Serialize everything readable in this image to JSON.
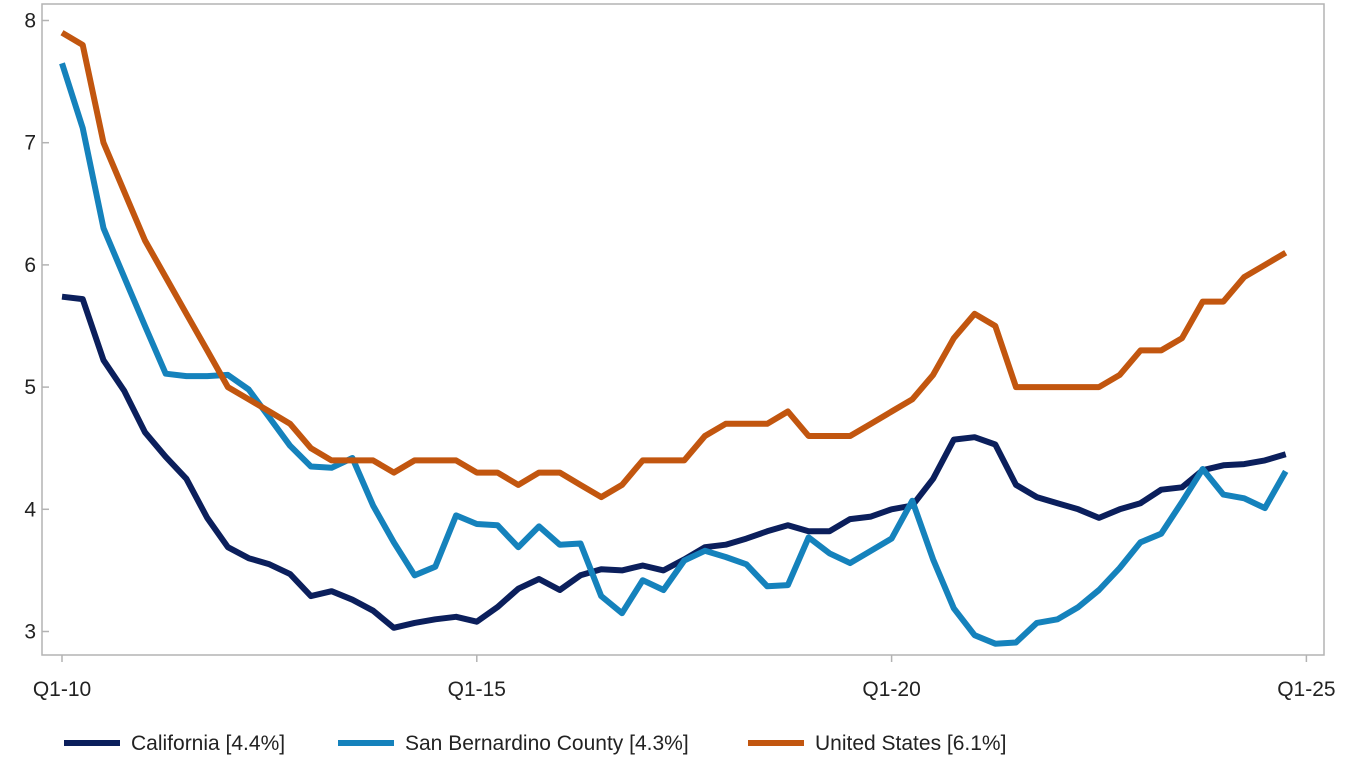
{
  "chart_data": {
    "type": "line",
    "title": "",
    "xlabel": "",
    "ylabel": "",
    "x_start": "Q1-10",
    "x_tick_labels": [
      "Q1-10",
      "Q1-15",
      "Q1-20",
      "Q1-25"
    ],
    "y_tick_labels": [
      "3",
      "4",
      "5",
      "6",
      "7",
      "8"
    ],
    "xlim_quarters": [
      "Q1-10",
      "Q1-25"
    ],
    "ylim": [
      2.85,
      8.1
    ],
    "grid": false,
    "legend_position": "bottom",
    "series": [
      {
        "name": "California [4.4%]",
        "color": "#0b1f5c",
        "values": [
          5.74,
          5.72,
          5.22,
          4.97,
          4.63,
          4.43,
          4.25,
          3.93,
          3.69,
          3.6,
          3.55,
          3.47,
          3.29,
          3.33,
          3.26,
          3.17,
          3.03,
          3.07,
          3.1,
          3.12,
          3.08,
          3.2,
          3.35,
          3.43,
          3.34,
          3.46,
          3.51,
          3.5,
          3.54,
          3.5,
          3.59,
          3.69,
          3.71,
          3.76,
          3.82,
          3.87,
          3.82,
          3.82,
          3.92,
          3.94,
          4.0,
          4.03,
          4.25,
          4.57,
          4.59,
          4.53,
          4.2,
          4.1,
          4.05,
          4.0,
          3.93,
          4.0,
          4.05,
          4.16,
          4.18,
          4.32,
          4.36,
          4.37,
          4.4,
          4.45
        ]
      },
      {
        "name": "San Bernardino County [4.3%]",
        "color": "#1582bc",
        "values": [
          7.65,
          7.12,
          6.3,
          5.9,
          5.5,
          5.11,
          5.09,
          5.09,
          5.1,
          4.98,
          4.75,
          4.52,
          4.35,
          4.34,
          4.42,
          4.03,
          3.73,
          3.46,
          3.53,
          3.95,
          3.88,
          3.87,
          3.69,
          3.86,
          3.71,
          3.72,
          3.29,
          3.15,
          3.42,
          3.34,
          3.58,
          3.66,
          3.61,
          3.55,
          3.37,
          3.38,
          3.77,
          3.64,
          3.56,
          3.66,
          3.76,
          4.07,
          3.59,
          3.19,
          2.97,
          2.9,
          2.91,
          3.07,
          3.1,
          3.2,
          3.34,
          3.52,
          3.73,
          3.8,
          4.06,
          4.33,
          4.12,
          4.09,
          4.01,
          4.31
        ]
      },
      {
        "name": "United States [6.1%]",
        "color": "#c2560f",
        "values": [
          7.9,
          7.8,
          7.0,
          6.6,
          6.2,
          5.9,
          5.6,
          5.3,
          5.0,
          4.9,
          4.8,
          4.7,
          4.5,
          4.4,
          4.4,
          4.4,
          4.3,
          4.4,
          4.4,
          4.4,
          4.3,
          4.3,
          4.2,
          4.3,
          4.3,
          4.2,
          4.1,
          4.2,
          4.4,
          4.4,
          4.4,
          4.6,
          4.7,
          4.7,
          4.7,
          4.8,
          4.6,
          4.6,
          4.6,
          4.7,
          4.8,
          4.9,
          5.1,
          5.4,
          5.6,
          5.5,
          5.0,
          5.0,
          5.0,
          5.0,
          5.0,
          5.1,
          5.3,
          5.3,
          5.4,
          5.7,
          5.7,
          5.9,
          6.0,
          6.1
        ]
      }
    ]
  }
}
